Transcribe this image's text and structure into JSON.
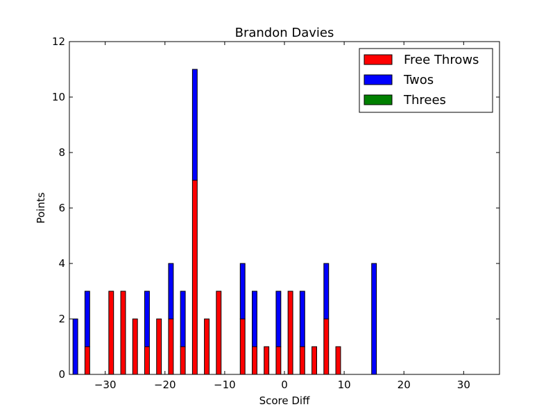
{
  "chart_data": {
    "type": "bar",
    "stacked": true,
    "title": "Brandon Davies",
    "xlabel": "Score Diff",
    "ylabel": "Points",
    "xlim": [
      -36,
      36
    ],
    "ylim": [
      0,
      12
    ],
    "xticks": [
      -30,
      -20,
      -10,
      0,
      10,
      20,
      30
    ],
    "xtick_labels": [
      "−30",
      "−20",
      "−10",
      "0",
      "10",
      "20",
      "30"
    ],
    "yticks": [
      0,
      2,
      4,
      6,
      8,
      10,
      12
    ],
    "ytick_labels": [
      "0",
      "2",
      "4",
      "6",
      "8",
      "10",
      "12"
    ],
    "legend_position": "top-right",
    "grid": false,
    "x": [
      -35,
      -34,
      -33,
      -32,
      -31,
      -30,
      -29,
      -28,
      -27,
      -26,
      -25,
      -24,
      -23,
      -22,
      -21,
      -20,
      -19,
      -18,
      -17,
      -16,
      -15,
      -14,
      -13,
      -12,
      -11,
      -10,
      -9,
      -8,
      -7,
      -6,
      -5,
      -4,
      -3,
      -2,
      -1,
      0,
      1,
      2,
      3,
      4,
      5,
      6,
      7,
      8,
      9,
      10,
      11,
      12,
      13,
      14,
      15,
      16,
      17,
      18,
      19,
      20,
      21,
      22,
      23,
      24,
      25,
      26,
      27,
      28,
      29,
      30,
      31,
      32,
      33,
      34,
      35
    ],
    "series": [
      {
        "name": "Free Throws",
        "color": "#ff0000",
        "values": [
          0,
          0,
          1,
          0,
          0,
          0,
          3,
          0,
          3,
          0,
          2,
          0,
          1,
          0,
          2,
          0,
          2,
          0,
          1,
          0,
          7,
          0,
          2,
          0,
          3,
          0,
          0,
          0,
          2,
          0,
          1,
          0,
          1,
          0,
          1,
          0,
          3,
          0,
          1,
          0,
          1,
          0,
          2,
          0,
          1,
          0,
          0,
          0,
          0,
          0,
          0,
          0,
          0,
          0,
          0,
          0,
          0,
          0,
          0,
          0,
          0,
          0,
          0,
          0,
          0,
          0,
          0,
          0,
          0,
          0,
          0
        ]
      },
      {
        "name": "Twos",
        "color": "#0000ff",
        "values": [
          2,
          0,
          2,
          0,
          0,
          0,
          0,
          0,
          0,
          0,
          0,
          0,
          2,
          0,
          0,
          0,
          2,
          0,
          2,
          0,
          4,
          0,
          0,
          0,
          0,
          0,
          0,
          0,
          2,
          0,
          2,
          0,
          0,
          0,
          2,
          0,
          0,
          0,
          2,
          0,
          0,
          0,
          2,
          0,
          0,
          0,
          0,
          0,
          0,
          0,
          4,
          0,
          0,
          0,
          0,
          0,
          0,
          0,
          0,
          0,
          0,
          0,
          0,
          0,
          0,
          0,
          0,
          0,
          0,
          0,
          0
        ]
      },
      {
        "name": "Threes",
        "color": "#008000",
        "values": [
          0,
          0,
          0,
          0,
          0,
          0,
          0,
          0,
          0,
          0,
          0,
          0,
          0,
          0,
          0,
          0,
          0,
          0,
          0,
          0,
          0,
          0,
          0,
          0,
          0,
          0,
          0,
          0,
          0,
          0,
          0,
          0,
          0,
          0,
          0,
          0,
          0,
          0,
          0,
          0,
          0,
          0,
          0,
          0,
          0,
          0,
          0,
          0,
          0,
          0,
          0,
          0,
          0,
          0,
          0,
          0,
          0,
          0,
          0,
          0,
          0,
          0,
          0,
          0,
          0,
          0,
          0,
          0,
          0,
          0,
          0
        ]
      }
    ]
  }
}
